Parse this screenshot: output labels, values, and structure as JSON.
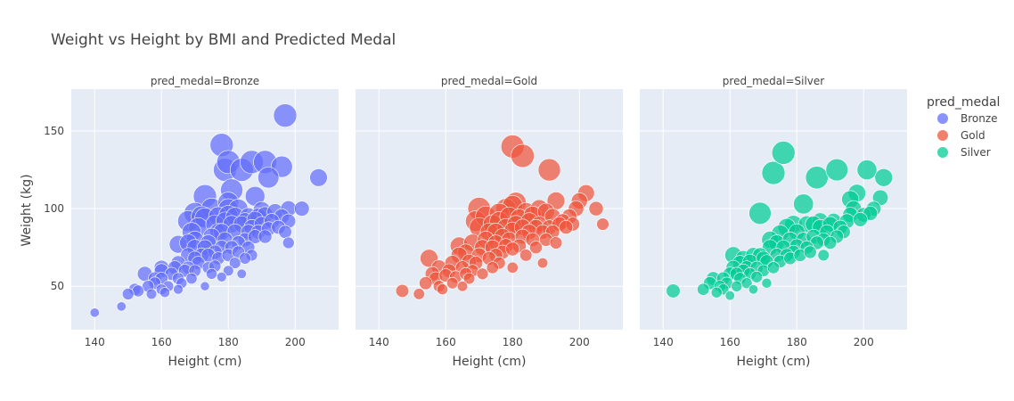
{
  "chart_data": {
    "type": "scatter",
    "title": "Weight vs Height by BMI and Predicted Medal",
    "xlabel": "Height (cm)",
    "ylabel": "Weight (kg)",
    "xlim": [
      133,
      213
    ],
    "ylim": [
      22,
      177
    ],
    "x_ticks": [
      140,
      160,
      180,
      200
    ],
    "y_ticks": [
      50,
      100,
      150
    ],
    "grid": true,
    "legend": {
      "title": "pred_medal",
      "placement": "right"
    },
    "facets": [
      {
        "label": "pred_medal=Bronze",
        "name": "Bronze",
        "color": "#636efa",
        "points": [
          [
            140,
            33
          ],
          [
            148,
            37
          ],
          [
            150,
            45
          ],
          [
            152,
            48
          ],
          [
            153,
            47
          ],
          [
            155,
            58
          ],
          [
            156,
            50
          ],
          [
            157,
            45
          ],
          [
            158,
            52
          ],
          [
            158,
            55
          ],
          [
            160,
            48
          ],
          [
            160,
            55
          ],
          [
            160,
            60
          ],
          [
            160,
            62
          ],
          [
            161,
            46
          ],
          [
            162,
            50
          ],
          [
            163,
            58
          ],
          [
            164,
            62
          ],
          [
            165,
            48
          ],
          [
            165,
            55
          ],
          [
            165,
            65
          ],
          [
            165,
            77
          ],
          [
            166,
            52
          ],
          [
            167,
            60
          ],
          [
            168,
            62
          ],
          [
            168,
            70
          ],
          [
            168,
            78
          ],
          [
            168,
            92
          ],
          [
            169,
            55
          ],
          [
            169,
            85
          ],
          [
            170,
            60
          ],
          [
            170,
            68
          ],
          [
            170,
            75
          ],
          [
            170,
            80
          ],
          [
            170,
            97
          ],
          [
            171,
            65
          ],
          [
            171,
            88
          ],
          [
            172,
            70
          ],
          [
            172,
            95
          ],
          [
            173,
            50
          ],
          [
            173,
            75
          ],
          [
            173,
            108
          ],
          [
            173,
            94
          ],
          [
            174,
            62
          ],
          [
            174,
            78
          ],
          [
            174,
            70
          ],
          [
            175,
            58
          ],
          [
            175,
            82
          ],
          [
            175,
            100
          ],
          [
            176,
            63
          ],
          [
            176,
            72
          ],
          [
            176,
            90
          ],
          [
            177,
            68
          ],
          [
            177,
            95
          ],
          [
            177,
            85
          ],
          [
            178,
            75
          ],
          [
            178,
            85
          ],
          [
            178,
            141
          ],
          [
            178,
            56
          ],
          [
            179,
            80
          ],
          [
            179,
            92
          ],
          [
            179,
            125
          ],
          [
            180,
            60
          ],
          [
            180,
            70
          ],
          [
            180,
            96
          ],
          [
            180,
            100
          ],
          [
            180,
            104
          ],
          [
            180,
            130
          ],
          [
            181,
            75
          ],
          [
            181,
            90
          ],
          [
            181,
            112
          ],
          [
            182,
            65
          ],
          [
            182,
            85
          ],
          [
            182,
            95
          ],
          [
            183,
            72
          ],
          [
            183,
            78
          ],
          [
            183,
            100
          ],
          [
            184,
            58
          ],
          [
            184,
            90
          ],
          [
            184,
            125
          ],
          [
            185,
            68
          ],
          [
            185,
            80
          ],
          [
            185,
            92
          ],
          [
            186,
            75
          ],
          [
            186,
            85
          ],
          [
            186,
            95
          ],
          [
            187,
            70
          ],
          [
            187,
            88
          ],
          [
            187,
            130
          ],
          [
            188,
            82
          ],
          [
            188,
            93
          ],
          [
            188,
            108
          ],
          [
            189,
            85
          ],
          [
            189,
            95
          ],
          [
            190,
            90
          ],
          [
            190,
            99
          ],
          [
            191,
            82
          ],
          [
            191,
            96
          ],
          [
            191,
            130
          ],
          [
            192,
            87
          ],
          [
            192,
            120
          ],
          [
            193,
            92
          ],
          [
            194,
            98
          ],
          [
            195,
            88
          ],
          [
            196,
            95
          ],
          [
            196,
            127
          ],
          [
            197,
            85
          ],
          [
            197,
            160
          ],
          [
            198,
            78
          ],
          [
            198,
            92
          ],
          [
            198,
            100
          ],
          [
            202,
            100
          ],
          [
            207,
            120
          ]
        ]
      },
      {
        "label": "pred_medal=Gold",
        "name": "Gold",
        "color": "#ef553b",
        "points": [
          [
            147,
            47
          ],
          [
            152,
            45
          ],
          [
            154,
            52
          ],
          [
            155,
            68
          ],
          [
            156,
            58
          ],
          [
            157,
            55
          ],
          [
            158,
            50
          ],
          [
            158,
            62
          ],
          [
            159,
            48
          ],
          [
            160,
            57
          ],
          [
            161,
            60
          ],
          [
            162,
            52
          ],
          [
            162,
            65
          ],
          [
            163,
            56
          ],
          [
            164,
            70
          ],
          [
            164,
            76
          ],
          [
            165,
            62
          ],
          [
            165,
            50
          ],
          [
            166,
            58
          ],
          [
            166,
            72
          ],
          [
            167,
            66
          ],
          [
            167,
            55
          ],
          [
            168,
            60
          ],
          [
            168,
            78
          ],
          [
            169,
            65
          ],
          [
            169,
            92
          ],
          [
            170,
            70
          ],
          [
            170,
            88
          ],
          [
            170,
            100
          ],
          [
            171,
            58
          ],
          [
            171,
            75
          ],
          [
            172,
            80
          ],
          [
            172,
            95
          ],
          [
            173,
            68
          ],
          [
            173,
            85
          ],
          [
            174,
            62
          ],
          [
            174,
            90
          ],
          [
            174,
            75
          ],
          [
            175,
            70
          ],
          [
            175,
            78
          ],
          [
            175,
            85
          ],
          [
            176,
            65
          ],
          [
            176,
            92
          ],
          [
            176,
            97
          ],
          [
            177,
            72
          ],
          [
            177,
            82
          ],
          [
            178,
            76
          ],
          [
            178,
            88
          ],
          [
            178,
            100
          ],
          [
            179,
            80
          ],
          [
            179,
            95
          ],
          [
            180,
            62
          ],
          [
            180,
            74
          ],
          [
            180,
            86
          ],
          [
            180,
            102
          ],
          [
            180,
            140
          ],
          [
            181,
            90
          ],
          [
            181,
            104
          ],
          [
            182,
            76
          ],
          [
            182,
            94
          ],
          [
            183,
            82
          ],
          [
            183,
            88
          ],
          [
            183,
            134
          ],
          [
            184,
            70
          ],
          [
            184,
            98
          ],
          [
            185,
            85
          ],
          [
            185,
            92
          ],
          [
            186,
            80
          ],
          [
            186,
            96
          ],
          [
            187,
            75
          ],
          [
            187,
            88
          ],
          [
            188,
            90
          ],
          [
            188,
            100
          ],
          [
            189,
            65
          ],
          [
            189,
            85
          ],
          [
            190,
            80
          ],
          [
            190,
            98
          ],
          [
            191,
            88
          ],
          [
            191,
            125
          ],
          [
            192,
            85
          ],
          [
            192,
            95
          ],
          [
            193,
            78
          ],
          [
            193,
            105
          ],
          [
            194,
            90
          ],
          [
            195,
            92
          ],
          [
            196,
            88
          ],
          [
            197,
            95
          ],
          [
            198,
            90
          ],
          [
            199,
            100
          ],
          [
            200,
            105
          ],
          [
            202,
            110
          ],
          [
            205,
            100
          ],
          [
            207,
            90
          ]
        ]
      },
      {
        "label": "pred_medal=Silver",
        "name": "Silver",
        "color": "#00cc96",
        "points": [
          [
            143,
            47
          ],
          [
            152,
            48
          ],
          [
            154,
            52
          ],
          [
            155,
            55
          ],
          [
            156,
            46
          ],
          [
            157,
            50
          ],
          [
            158,
            48
          ],
          [
            158,
            55
          ],
          [
            159,
            52
          ],
          [
            160,
            58
          ],
          [
            160,
            44
          ],
          [
            161,
            62
          ],
          [
            161,
            70
          ],
          [
            162,
            50
          ],
          [
            162,
            58
          ],
          [
            163,
            55
          ],
          [
            163,
            65
          ],
          [
            164,
            68
          ],
          [
            164,
            60
          ],
          [
            165,
            52
          ],
          [
            165,
            62
          ],
          [
            166,
            58
          ],
          [
            166,
            66
          ],
          [
            167,
            48
          ],
          [
            167,
            70
          ],
          [
            168,
            62
          ],
          [
            168,
            56
          ],
          [
            169,
            97
          ],
          [
            169,
            70
          ],
          [
            170,
            60
          ],
          [
            170,
            68
          ],
          [
            171,
            52
          ],
          [
            171,
            66
          ],
          [
            172,
            75
          ],
          [
            172,
            80
          ],
          [
            173,
            62
          ],
          [
            173,
            123
          ],
          [
            174,
            70
          ],
          [
            174,
            78
          ],
          [
            175,
            66
          ],
          [
            175,
            84
          ],
          [
            176,
            75
          ],
          [
            176,
            136
          ],
          [
            177,
            70
          ],
          [
            177,
            88
          ],
          [
            178,
            68
          ],
          [
            178,
            80
          ],
          [
            179,
            72
          ],
          [
            179,
            90
          ],
          [
            180,
            76
          ],
          [
            180,
            85
          ],
          [
            181,
            70
          ],
          [
            182,
            80
          ],
          [
            182,
            103
          ],
          [
            183,
            75
          ],
          [
            183,
            90
          ],
          [
            184,
            72
          ],
          [
            185,
            82
          ],
          [
            185,
            90
          ],
          [
            186,
            120
          ],
          [
            186,
            78
          ],
          [
            187,
            88
          ],
          [
            187,
            92
          ],
          [
            188,
            70
          ],
          [
            188,
            80
          ],
          [
            189,
            85
          ],
          [
            190,
            90
          ],
          [
            190,
            78
          ],
          [
            191,
            92
          ],
          [
            192,
            125
          ],
          [
            192,
            82
          ],
          [
            193,
            88
          ],
          [
            194,
            85
          ],
          [
            195,
            92
          ],
          [
            196,
            96
          ],
          [
            196,
            106
          ],
          [
            197,
            100
          ],
          [
            198,
            110
          ],
          [
            199,
            93
          ],
          [
            200,
            96
          ],
          [
            201,
            125
          ],
          [
            202,
            97
          ],
          [
            203,
            100
          ],
          [
            205,
            107
          ],
          [
            206,
            120
          ]
        ]
      }
    ]
  }
}
